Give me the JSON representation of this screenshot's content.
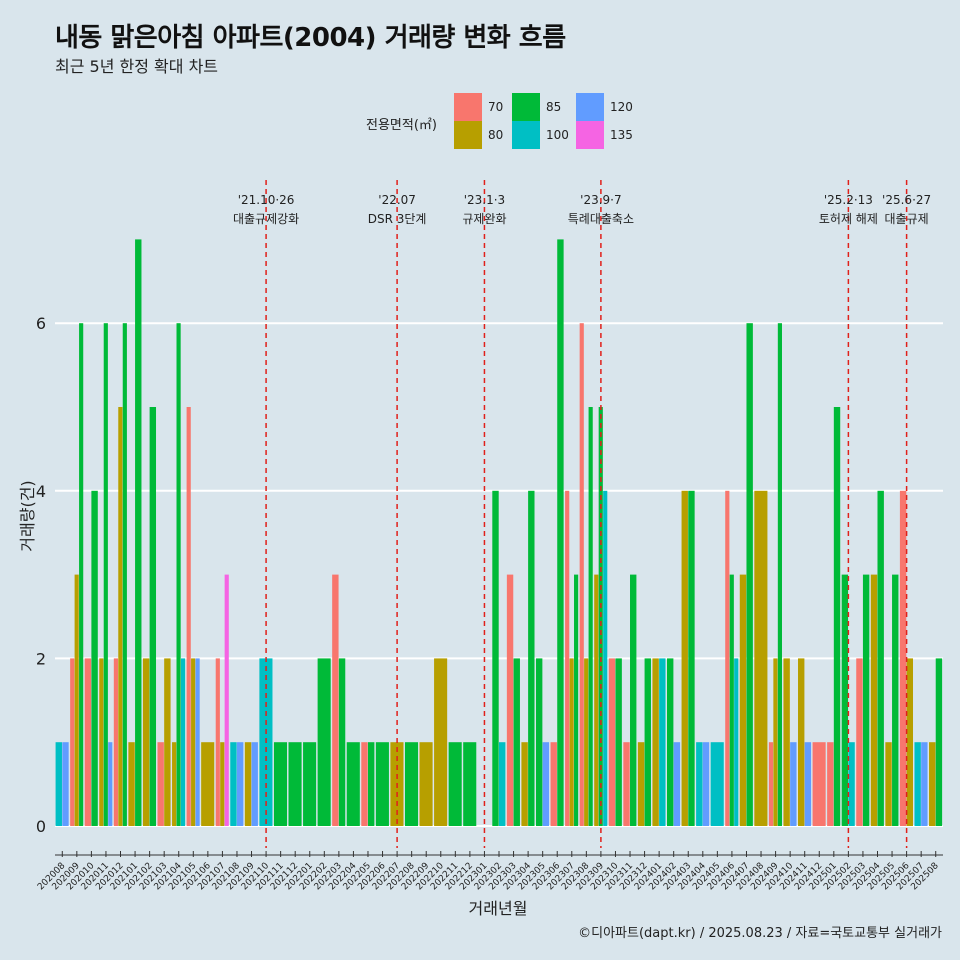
{
  "title": "내동 맑은아침 아파트(2004) 거래량 변화 흐름",
  "subtitle": "최근 5년 한정 확대 차트",
  "caption": "©디아파트(dapt.kr) / 2025.08.23 / 자료=국토교통부 실거래가",
  "legend": {
    "title": "전용면적(㎡)",
    "items": [
      {
        "label": "70",
        "color": "#F8766D"
      },
      {
        "label": "80",
        "color": "#B79F00"
      },
      {
        "label": "85",
        "color": "#00BA38"
      },
      {
        "label": "100",
        "color": "#00BFC4"
      },
      {
        "label": "120",
        "color": "#619CFF"
      },
      {
        "label": "135",
        "color": "#F564E3"
      }
    ]
  },
  "chart_data": {
    "type": "bar",
    "xlabel": "거래년월",
    "ylabel": "거래량(건)",
    "ylim": [
      0,
      7
    ],
    "yticks": [
      0,
      2,
      4,
      6
    ],
    "grid": true,
    "categories": [
      "202008",
      "202009",
      "202010",
      "202011",
      "202012",
      "202101",
      "202102",
      "202103",
      "202104",
      "202105",
      "202106",
      "202107",
      "202108",
      "202109",
      "202110",
      "202111",
      "202112",
      "202201",
      "202202",
      "202203",
      "202204",
      "202205",
      "202206",
      "202207",
      "202208",
      "202209",
      "202210",
      "202211",
      "202212",
      "202301",
      "202302",
      "202303",
      "202304",
      "202305",
      "202306",
      "202307",
      "202308",
      "202309",
      "202310",
      "202311",
      "202312",
      "202401",
      "202402",
      "202403",
      "202404",
      "202405",
      "202406",
      "202407",
      "202408",
      "202409",
      "202410",
      "202411",
      "202412",
      "202501",
      "202502",
      "202503",
      "202504",
      "202505",
      "202506",
      "202507",
      "202508"
    ],
    "bars": [
      {
        "month": "202008",
        "size": "100",
        "value": 1
      },
      {
        "month": "202008",
        "size": "120",
        "value": 1
      },
      {
        "month": "202009",
        "size": "70",
        "value": 2
      },
      {
        "month": "202009",
        "size": "80",
        "value": 3
      },
      {
        "month": "202009",
        "size": "85",
        "value": 6
      },
      {
        "month": "202010",
        "size": "70",
        "value": 2
      },
      {
        "month": "202010",
        "size": "85",
        "value": 4
      },
      {
        "month": "202011",
        "size": "80",
        "value": 2
      },
      {
        "month": "202011",
        "size": "85",
        "value": 6
      },
      {
        "month": "202011",
        "size": "120",
        "value": 1
      },
      {
        "month": "202012",
        "size": "70",
        "value": 2
      },
      {
        "month": "202012",
        "size": "80",
        "value": 5
      },
      {
        "month": "202012",
        "size": "85",
        "value": 6
      },
      {
        "month": "202101",
        "size": "80",
        "value": 1
      },
      {
        "month": "202101",
        "size": "85",
        "value": 7
      },
      {
        "month": "202102",
        "size": "80",
        "value": 2
      },
      {
        "month": "202102",
        "size": "85",
        "value": 5
      },
      {
        "month": "202103",
        "size": "70",
        "value": 1
      },
      {
        "month": "202103",
        "size": "80",
        "value": 2
      },
      {
        "month": "202104",
        "size": "80",
        "value": 1
      },
      {
        "month": "202104",
        "size": "85",
        "value": 6
      },
      {
        "month": "202104",
        "size": "100",
        "value": 2
      },
      {
        "month": "202105",
        "size": "70",
        "value": 5
      },
      {
        "month": "202105",
        "size": "80",
        "value": 2
      },
      {
        "month": "202105",
        "size": "120",
        "value": 2
      },
      {
        "month": "202106",
        "size": "80",
        "value": 1
      },
      {
        "month": "202107",
        "size": "80",
        "value": 1
      },
      {
        "month": "202107",
        "size": "135",
        "value": 3
      },
      {
        "month": "202107",
        "size": "70",
        "value": 2
      },
      {
        "month": "202108",
        "size": "100",
        "value": 1
      },
      {
        "month": "202108",
        "size": "120",
        "value": 1
      },
      {
        "month": "202109",
        "size": "80",
        "value": 1
      },
      {
        "month": "202109",
        "size": "120",
        "value": 1
      },
      {
        "month": "202110",
        "size": "100",
        "value": 2
      },
      {
        "month": "202111",
        "size": "85",
        "value": 1
      },
      {
        "month": "202112",
        "size": "85",
        "value": 1
      },
      {
        "month": "202201",
        "size": "85",
        "value": 1
      },
      {
        "month": "202202",
        "size": "85",
        "value": 2
      },
      {
        "month": "202203",
        "size": "70",
        "value": 3
      },
      {
        "month": "202203",
        "size": "85",
        "value": 2
      },
      {
        "month": "202204",
        "size": "85",
        "value": 1
      },
      {
        "month": "202205",
        "size": "70",
        "value": 1
      },
      {
        "month": "202205",
        "size": "85",
        "value": 1
      },
      {
        "month": "202206",
        "size": "85",
        "value": 1
      },
      {
        "month": "202207",
        "size": "80",
        "value": 1
      },
      {
        "month": "202208",
        "size": "85",
        "value": 1
      },
      {
        "month": "202209",
        "size": "80",
        "value": 1
      },
      {
        "month": "202210",
        "size": "80",
        "value": 2
      },
      {
        "month": "202211",
        "size": "85",
        "value": 1
      },
      {
        "month": "202212",
        "size": "85",
        "value": 1
      },
      {
        "month": "202302",
        "size": "85",
        "value": 4
      },
      {
        "month": "202302",
        "size": "100",
        "value": 1
      },
      {
        "month": "202303",
        "size": "70",
        "value": 3
      },
      {
        "month": "202303",
        "size": "85",
        "value": 2
      },
      {
        "month": "202304",
        "size": "80",
        "value": 1
      },
      {
        "month": "202304",
        "size": "85",
        "value": 4
      },
      {
        "month": "202305",
        "size": "85",
        "value": 2
      },
      {
        "month": "202305",
        "size": "120",
        "value": 1
      },
      {
        "month": "202306",
        "size": "70",
        "value": 1
      },
      {
        "month": "202306",
        "size": "85",
        "value": 7
      },
      {
        "month": "202307",
        "size": "70",
        "value": 4
      },
      {
        "month": "202307",
        "size": "80",
        "value": 2
      },
      {
        "month": "202307",
        "size": "85",
        "value": 3
      },
      {
        "month": "202308",
        "size": "70",
        "value": 6
      },
      {
        "month": "202308",
        "size": "80",
        "value": 2
      },
      {
        "month": "202308",
        "size": "85",
        "value": 5
      },
      {
        "month": "202309",
        "size": "80",
        "value": 3
      },
      {
        "month": "202309",
        "size": "85",
        "value": 5
      },
      {
        "month": "202309",
        "size": "100",
        "value": 4
      },
      {
        "month": "202310",
        "size": "70",
        "value": 2
      },
      {
        "month": "202310",
        "size": "85",
        "value": 2
      },
      {
        "month": "202311",
        "size": "70",
        "value": 1
      },
      {
        "month": "202311",
        "size": "85",
        "value": 3
      },
      {
        "month": "202312",
        "size": "80",
        "value": 1
      },
      {
        "month": "202312",
        "size": "85",
        "value": 2
      },
      {
        "month": "202401",
        "size": "80",
        "value": 2
      },
      {
        "month": "202401",
        "size": "100",
        "value": 2
      },
      {
        "month": "202402",
        "size": "85",
        "value": 2
      },
      {
        "month": "202402",
        "size": "120",
        "value": 1
      },
      {
        "month": "202403",
        "size": "80",
        "value": 4
      },
      {
        "month": "202403",
        "size": "85",
        "value": 4
      },
      {
        "month": "202404",
        "size": "100",
        "value": 1
      },
      {
        "month": "202404",
        "size": "120",
        "value": 1
      },
      {
        "month": "202405",
        "size": "100",
        "value": 1
      },
      {
        "month": "202406",
        "size": "70",
        "value": 4
      },
      {
        "month": "202406",
        "size": "85",
        "value": 3
      },
      {
        "month": "202406",
        "size": "100",
        "value": 2
      },
      {
        "month": "202407",
        "size": "80",
        "value": 3
      },
      {
        "month": "202407",
        "size": "85",
        "value": 6
      },
      {
        "month": "202408",
        "size": "80",
        "value": 4
      },
      {
        "month": "202409",
        "size": "70",
        "value": 1
      },
      {
        "month": "202409",
        "size": "80",
        "value": 2
      },
      {
        "month": "202409",
        "size": "85",
        "value": 6
      },
      {
        "month": "202410",
        "size": "80",
        "value": 2
      },
      {
        "month": "202410",
        "size": "120",
        "value": 1
      },
      {
        "month": "202411",
        "size": "80",
        "value": 2
      },
      {
        "month": "202411",
        "size": "120",
        "value": 1
      },
      {
        "month": "202412",
        "size": "70",
        "value": 1
      },
      {
        "month": "202501",
        "size": "70",
        "value": 1
      },
      {
        "month": "202501",
        "size": "85",
        "value": 5
      },
      {
        "month": "202502",
        "size": "85",
        "value": 3
      },
      {
        "month": "202502",
        "size": "100",
        "value": 1
      },
      {
        "month": "202503",
        "size": "70",
        "value": 2
      },
      {
        "month": "202503",
        "size": "85",
        "value": 3
      },
      {
        "month": "202504",
        "size": "80",
        "value": 3
      },
      {
        "month": "202504",
        "size": "85",
        "value": 4
      },
      {
        "month": "202505",
        "size": "80",
        "value": 1
      },
      {
        "month": "202505",
        "size": "85",
        "value": 3
      },
      {
        "month": "202506",
        "size": "70",
        "value": 4
      },
      {
        "month": "202506",
        "size": "80",
        "value": 2
      },
      {
        "month": "202507",
        "size": "100",
        "value": 1
      },
      {
        "month": "202507",
        "size": "120",
        "value": 1
      },
      {
        "month": "202508",
        "size": "80",
        "value": 1
      },
      {
        "month": "202508",
        "size": "85",
        "value": 2
      }
    ],
    "annotations": [
      {
        "month": "202110",
        "date": "'21.10·26",
        "label": "대출규제강화"
      },
      {
        "month": "202207",
        "date": "'22.07",
        "label": "DSR 3단계"
      },
      {
        "month": "202301",
        "date": "'23.1·3",
        "label": "규제완화"
      },
      {
        "month": "202309",
        "date": "'23.9·7",
        "label": "특례대출축소"
      },
      {
        "month": "202502",
        "date": "'25.2·13",
        "label": "토허제 해제"
      },
      {
        "month": "202506",
        "date": "'25.6·27",
        "label": "대출규제"
      }
    ]
  }
}
